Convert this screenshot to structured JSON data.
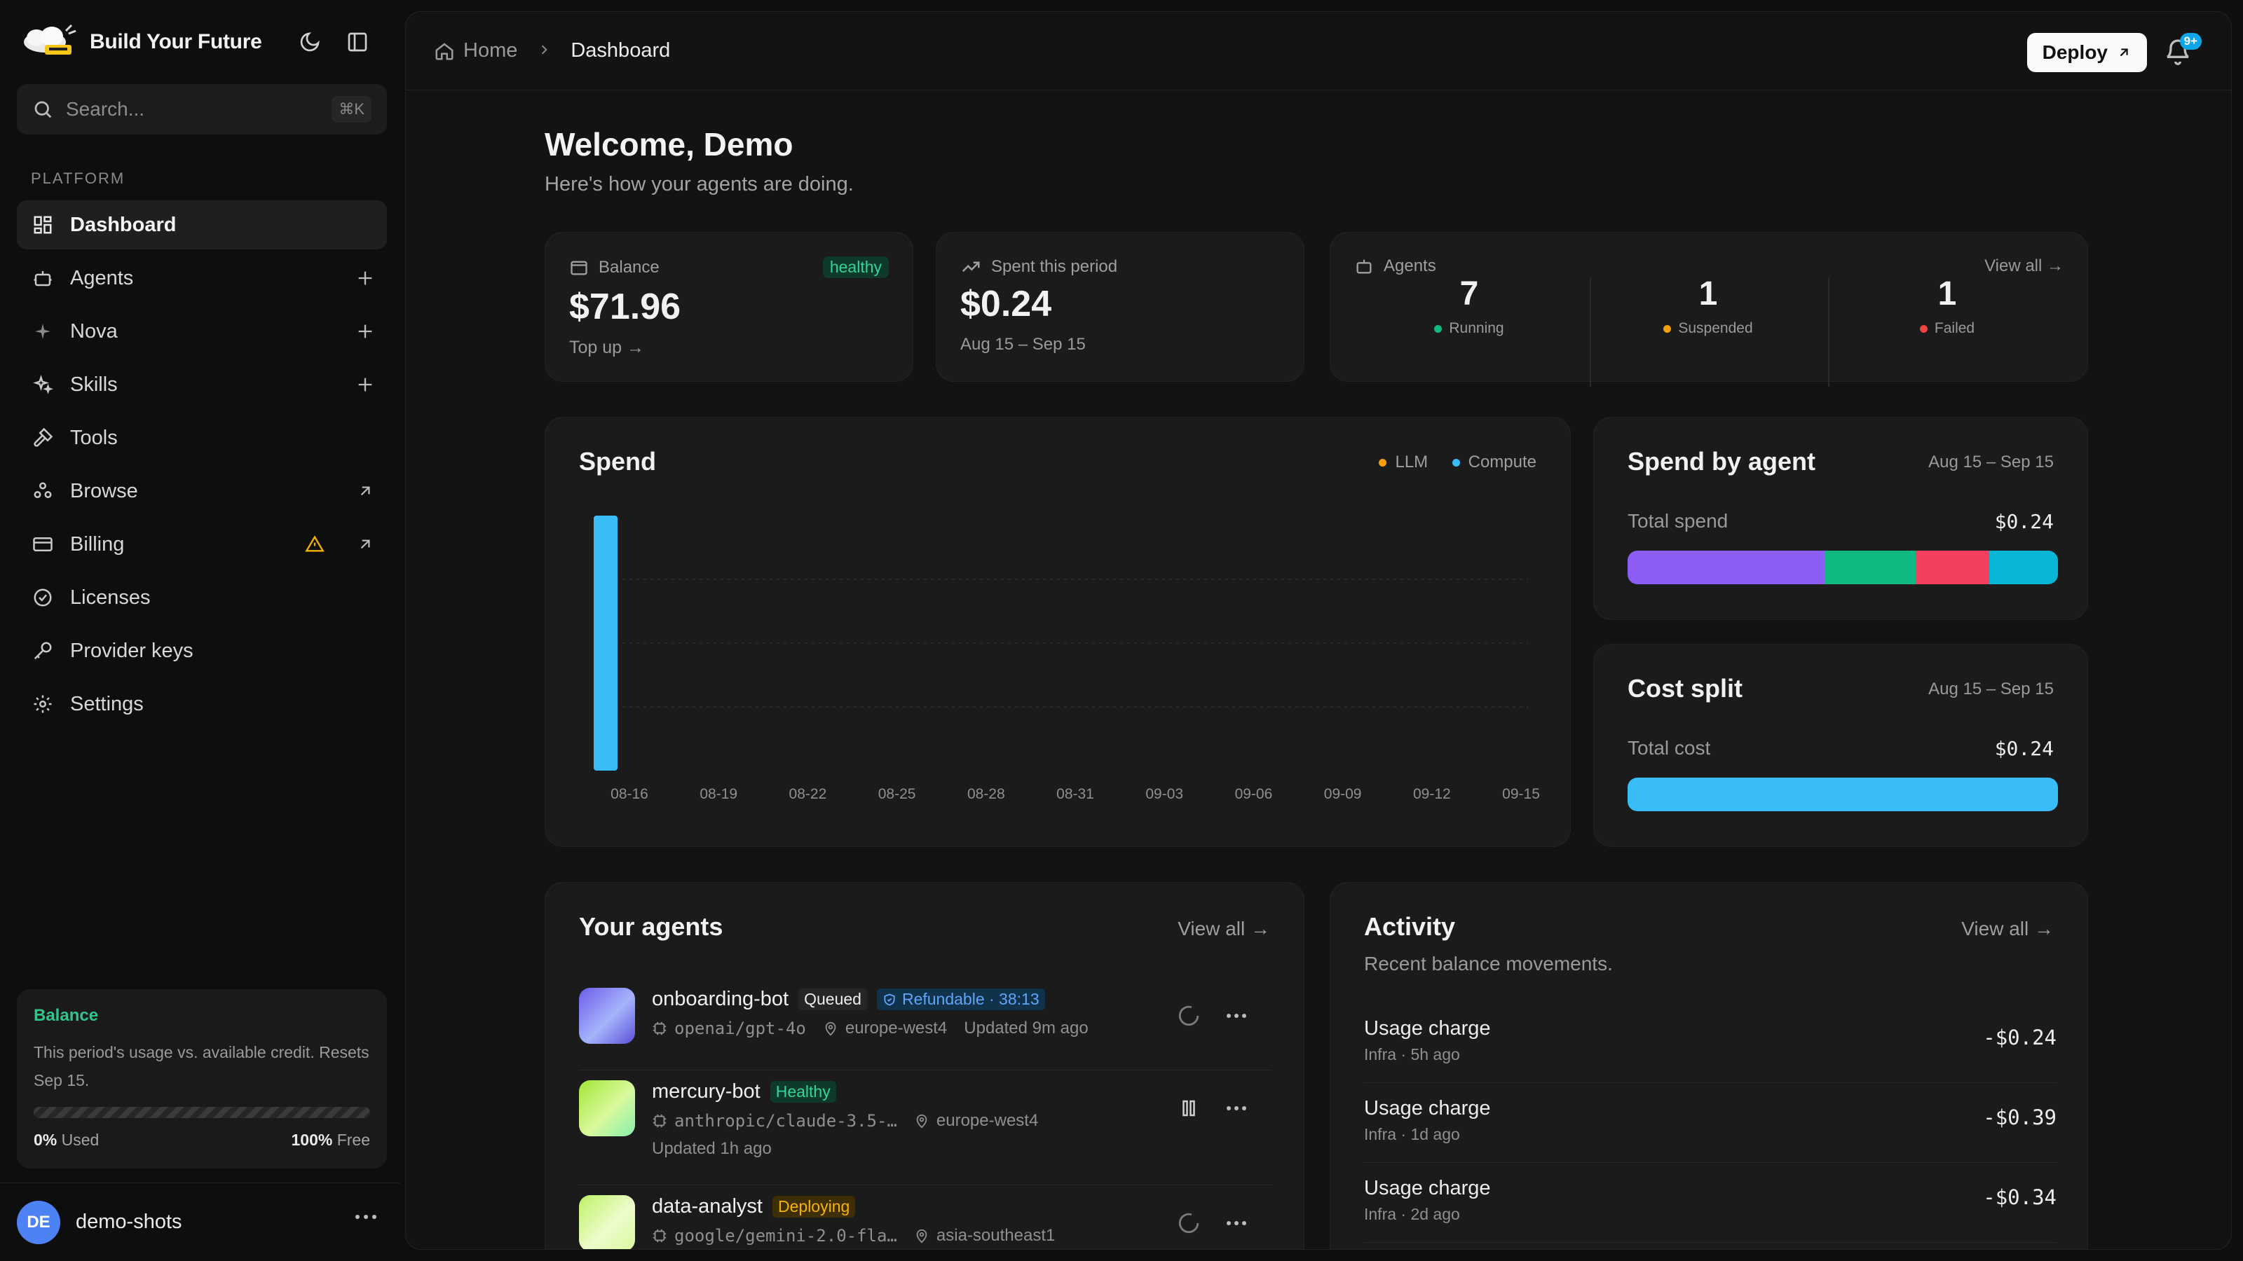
{
  "app": {
    "name": "Build Your Future"
  },
  "search": {
    "placeholder": "Search...",
    "shortcut": "⌘K"
  },
  "sidebar": {
    "section": "PLATFORM",
    "items": [
      {
        "label": "Dashboard",
        "icon": "dashboard-icon",
        "active": true
      },
      {
        "label": "Agents",
        "icon": "bot-icon",
        "action": "plus"
      },
      {
        "label": "Nova",
        "icon": "sparkle-icon",
        "action": "plus"
      },
      {
        "label": "Skills",
        "icon": "skills-icon",
        "action": "plus"
      },
      {
        "label": "Tools",
        "icon": "hammer-icon"
      },
      {
        "label": "Browse",
        "icon": "browse-icon",
        "action": "external"
      },
      {
        "label": "Billing",
        "icon": "card-icon",
        "action": "external",
        "warning": true
      },
      {
        "label": "Licenses",
        "icon": "badge-check-icon"
      },
      {
        "label": "Provider keys",
        "icon": "key-icon"
      },
      {
        "label": "Settings",
        "icon": "gear-icon"
      }
    ],
    "balance_card": {
      "title": "Balance",
      "desc": "This period's usage vs. available credit. Resets Sep 15.",
      "used_pct": "0%",
      "used_label": "Used",
      "free_pct": "100%",
      "free_label": "Free",
      "used_fraction": 0
    },
    "user": {
      "initials": "DE",
      "name": "demo-shots"
    }
  },
  "topbar": {
    "breadcrumb": [
      "Home",
      "Dashboard"
    ],
    "deploy_label": "Deploy",
    "notif_badge": "9+"
  },
  "welcome": {
    "title": "Welcome, Demo",
    "subtitle": "Here's how your agents are doing."
  },
  "stats": {
    "balance": {
      "label": "Balance",
      "value": "$71.96",
      "status": "healthy",
      "link": "Top up →"
    },
    "spent": {
      "label": "Spent this period",
      "value": "$0.24",
      "range": "Aug 15 – Sep 15"
    },
    "agents": {
      "label": "Agents",
      "link": "View all →",
      "running": {
        "count": "7",
        "label": "Running"
      },
      "suspended": {
        "count": "1",
        "label": "Suspended"
      },
      "failed": {
        "count": "1",
        "label": "Failed"
      }
    }
  },
  "colors": {
    "llm": "#f59e0b",
    "compute": "#38bdf8",
    "running": "#10b981",
    "suspended": "#f59e0b",
    "failed": "#ef4444",
    "accent": "#31c48d"
  },
  "spend_chart": {
    "title": "Spend",
    "legend": [
      "LLM",
      "Compute"
    ]
  },
  "chart_data": {
    "type": "bar",
    "title": "Spend",
    "categories": [
      "08-16",
      "08-19",
      "08-22",
      "08-25",
      "08-28",
      "08-31",
      "09-03",
      "09-06",
      "09-09",
      "09-12",
      "09-15"
    ],
    "series": [
      {
        "name": "LLM",
        "values": [
          0,
          0,
          0,
          0,
          0,
          0,
          0,
          0,
          0,
          0,
          0
        ]
      },
      {
        "name": "Compute",
        "values": [
          0.24,
          0,
          0,
          0,
          0,
          0,
          0,
          0,
          0,
          0,
          0
        ]
      }
    ],
    "ylim": [
      0,
      0.24
    ],
    "grid": true,
    "legend": "top-right"
  },
  "spend_by_agent": {
    "title": "Spend by agent",
    "range": "Aug 15 – Sep 15",
    "total_label": "Total spend",
    "total_value": "$0.24",
    "segments": [
      {
        "fraction": 0.46,
        "color": "#8b5cf6"
      },
      {
        "fraction": 0.21,
        "color": "#10b981"
      },
      {
        "fraction": 0.17,
        "color": "#f43f5e"
      },
      {
        "fraction": 0.16,
        "color": "#06b6d4"
      }
    ]
  },
  "cost_split": {
    "title": "Cost split",
    "range": "Aug 15 – Sep 15",
    "total_label": "Total cost",
    "total_value": "$0.24",
    "segments": [
      {
        "fraction": 1.0,
        "color": "#38bdf8"
      }
    ]
  },
  "your_agents": {
    "title": "Your agents",
    "link": "View all →",
    "rows": [
      {
        "name": "onboarding-bot",
        "status": "Queued",
        "extra_tag": "Refundable · 38:13",
        "model": "openai/gpt-4o",
        "region": "europe-west4",
        "updated": "Updated 9m ago",
        "thumb": "linear-gradient(135deg,#6d5ce8,#a5b4fc 55%,#5b4fd6)"
      },
      {
        "name": "mercury-bot",
        "status": "Healthy",
        "model": "anthropic/claude-3.5-…",
        "region": "europe-west4",
        "updated": "Updated 1h ago",
        "thumb": "linear-gradient(135deg,#a3e635,#d9f99d 55%,#86efac)"
      },
      {
        "name": "data-analyst",
        "status": "Deploying",
        "model": "google/gemini-2.0-fla…",
        "region": "asia-southeast1",
        "updated": "",
        "thumb": "linear-gradient(135deg,#bef264,#ecfccb 55%,#d9f99d)"
      }
    ]
  },
  "activity": {
    "title": "Activity",
    "subtitle": "Recent balance movements.",
    "link": "View all →",
    "rows": [
      {
        "title": "Usage charge",
        "meta": "Infra · 5h ago",
        "amount": "-$0.24"
      },
      {
        "title": "Usage charge",
        "meta": "Infra · 1d ago",
        "amount": "-$0.39"
      },
      {
        "title": "Usage charge",
        "meta": "Infra · 2d ago",
        "amount": "-$0.34"
      }
    ]
  }
}
